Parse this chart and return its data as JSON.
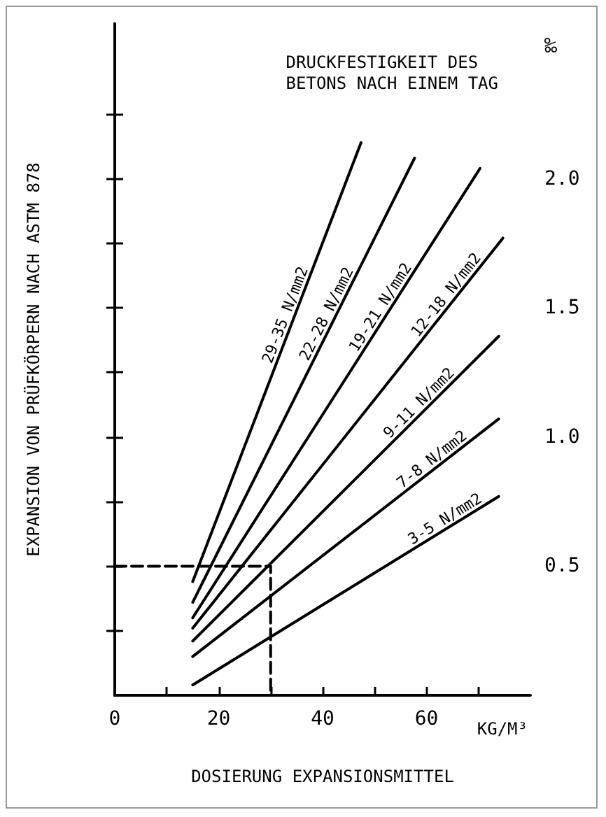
{
  "chart_data": {
    "type": "line",
    "title": "DRUCKFESTIGKEIT DES\nBETONS NACH EINEM TAG",
    "xlabel": "DOSIERUNG EXPANSIONSMITTEL",
    "ylabel": "EXPANSION VON PRÜFKÖRPERN NACH ASTM 878",
    "annotations": [
      "‰",
      "KG/M³"
    ],
    "xlim": [
      0,
      80
    ],
    "xticks": [
      0,
      {
        "value": 10,
        "label": null
      },
      20,
      {
        "value": 30,
        "label": null
      },
      40,
      {
        "value": 50,
        "label": null
      },
      60,
      {
        "value": 70,
        "label": null
      }
    ],
    "ylim": [
      0,
      2.6
    ],
    "yticks": [
      {
        "value": 0.25,
        "label": null
      },
      0.5,
      {
        "value": 0.75,
        "label": null
      },
      {
        "value": 1,
        "label": "1.0"
      },
      {
        "value": 1.25,
        "label": null
      },
      1.5,
      {
        "value": 1.75,
        "label": null
      },
      {
        "value": 2,
        "label": "2.0"
      },
      {
        "value": 2.25,
        "label": null
      }
    ],
    "grid": false,
    "legend": false,
    "marker": "none",
    "line_style": "solid",
    "series": [
      {
        "name": "29-35 N/mm2",
        "color": "#000000",
        "x": [
          15,
          47.4
        ],
        "values": [
          0.44,
          2.14
        ]
      },
      {
        "name": "22-28 N/mm2",
        "color": "#000000",
        "x": [
          15,
          57.7
        ],
        "values": [
          0.36,
          2.08
        ]
      },
      {
        "name": "19-21 N/mm2",
        "color": "#000000",
        "x": [
          15,
          70.3
        ],
        "values": [
          0.3,
          2.04
        ]
      },
      {
        "name": "12-18 N/mm2",
        "color": "#000000",
        "x": [
          15,
          74.7
        ],
        "values": [
          0.26,
          1.77
        ]
      },
      {
        "name": "9-11 N/mm2",
        "color": "#000000",
        "x": [
          15,
          73.9
        ],
        "values": [
          0.21,
          1.39
        ]
      },
      {
        "name": "7-8 N/mm2",
        "color": "#000000",
        "x": [
          15,
          73.9
        ],
        "values": [
          0.15,
          1.07
        ]
      },
      {
        "name": "3-5 N/mm2",
        "color": "#000000",
        "x": [
          15,
          73.9
        ],
        "values": [
          0.04,
          0.77
        ]
      },
      {
        "color": "#000000",
        "line_style": "dashed",
        "x": [
          0,
          30,
          30
        ],
        "values": [
          0.5,
          0.5,
          0
        ]
      }
    ]
  }
}
